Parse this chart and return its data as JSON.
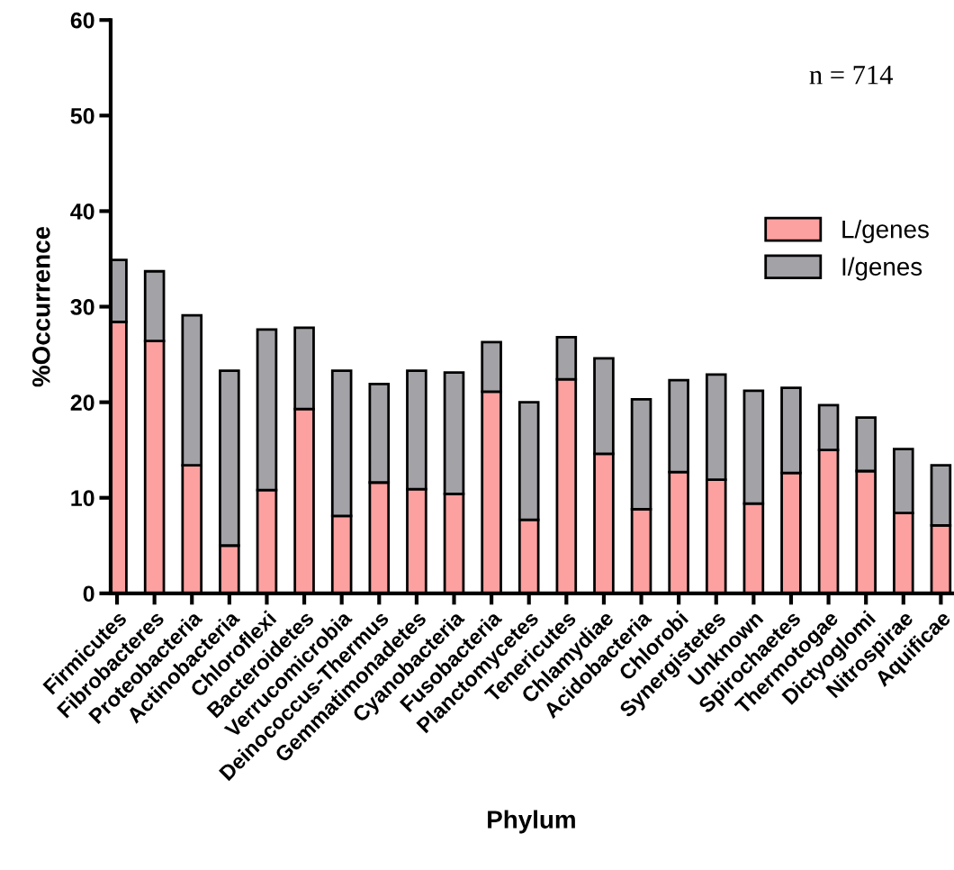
{
  "chart_data": {
    "type": "bar",
    "stacked": true,
    "xlabel": "Phylum",
    "ylabel": "%Occurrence",
    "categories": [
      "Firmicutes",
      "Fibrobacteres",
      "Proteobacteria",
      "Actinobacteria",
      "Chloroflexi",
      "Bacteroidetes",
      "Verrucomicrobia",
      "Deinococcus-Thermus",
      "Gemmatimonadetes",
      "Cyanobacteria",
      "Fusobacteria",
      "Planctomycetes",
      "Tenericutes",
      "Chlamydiae",
      "Acidobacteria",
      "Chlorobi",
      "Synergistetes",
      "Unknown",
      "Spirochaetes",
      "Thermotogae",
      "Dictyoglomi",
      "Nitrospirae",
      "Aquificae"
    ],
    "series": [
      {
        "name": "L/genes",
        "color": "#fda0a0",
        "values": [
          28.4,
          26.4,
          13.4,
          5.0,
          10.8,
          19.3,
          8.1,
          11.6,
          10.9,
          10.4,
          21.1,
          7.7,
          22.4,
          14.6,
          8.8,
          12.7,
          11.9,
          9.4,
          12.6,
          15.0,
          12.8,
          8.4,
          7.1
        ]
      },
      {
        "name": "I/genes",
        "color": "#a3a2a7",
        "values": [
          6.5,
          7.3,
          15.7,
          18.3,
          16.8,
          8.5,
          15.2,
          10.3,
          12.4,
          12.7,
          5.2,
          12.3,
          4.4,
          10.0,
          11.5,
          9.6,
          11.0,
          11.8,
          8.9,
          4.7,
          5.6,
          6.7,
          6.3
        ]
      }
    ],
    "ylim": [
      0,
      60
    ],
    "yticks": [
      0,
      10,
      20,
      30,
      40,
      50,
      60
    ],
    "grid": false,
    "legend": "right",
    "annotations": [
      "n = 714"
    ]
  }
}
